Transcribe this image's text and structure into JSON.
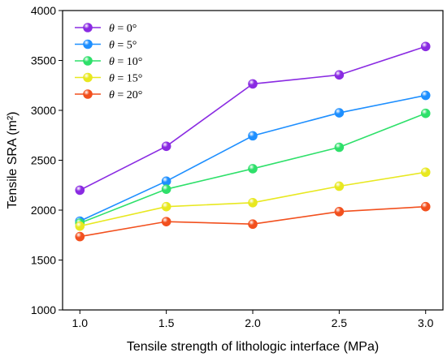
{
  "chart_data": {
    "type": "line",
    "title": "",
    "xlabel": "Tensile strength of lithologic interface (MPa)",
    "ylabel": "Tensile SRA (m²)",
    "x": [
      1.0,
      1.5,
      2.0,
      2.5,
      3.0
    ],
    "x_tick_labels": [
      "1.0",
      "1.5",
      "2.0",
      "2.5",
      "3.0"
    ],
    "xlim": [
      0.9,
      3.1
    ],
    "ylim": [
      1000,
      4000
    ],
    "y_ticks": [
      1000,
      1500,
      2000,
      2500,
      3000,
      3500,
      4000
    ],
    "y_tick_labels": [
      "1000",
      "1500",
      "2000",
      "2500",
      "3000",
      "3500",
      "4000"
    ],
    "grid": false,
    "legend_position": "top-left",
    "series": [
      {
        "name": "θ = 0°",
        "name_symbol": "θ",
        "name_rest": " = 0°",
        "color": "#8a2be2",
        "values": [
          2200,
          2640,
          3265,
          3355,
          3640
        ]
      },
      {
        "name": "θ = 5°",
        "name_symbol": "θ",
        "name_rest": " = 5°",
        "color": "#1e8fff",
        "values": [
          1890,
          2290,
          2745,
          2975,
          3150
        ]
      },
      {
        "name": "θ = 10°",
        "name_symbol": "θ",
        "name_rest": " = 10°",
        "color": "#2ee06a",
        "values": [
          1870,
          2210,
          2415,
          2630,
          2970
        ]
      },
      {
        "name": "θ = 15°",
        "name_symbol": "θ",
        "name_rest": " = 15°",
        "color": "#e8e820",
        "values": [
          1840,
          2035,
          2075,
          2240,
          2380
        ]
      },
      {
        "name": "θ = 20°",
        "name_symbol": "θ",
        "name_rest": " = 20°",
        "color": "#f2501e",
        "values": [
          1735,
          1885,
          1860,
          1985,
          2035
        ]
      }
    ]
  }
}
